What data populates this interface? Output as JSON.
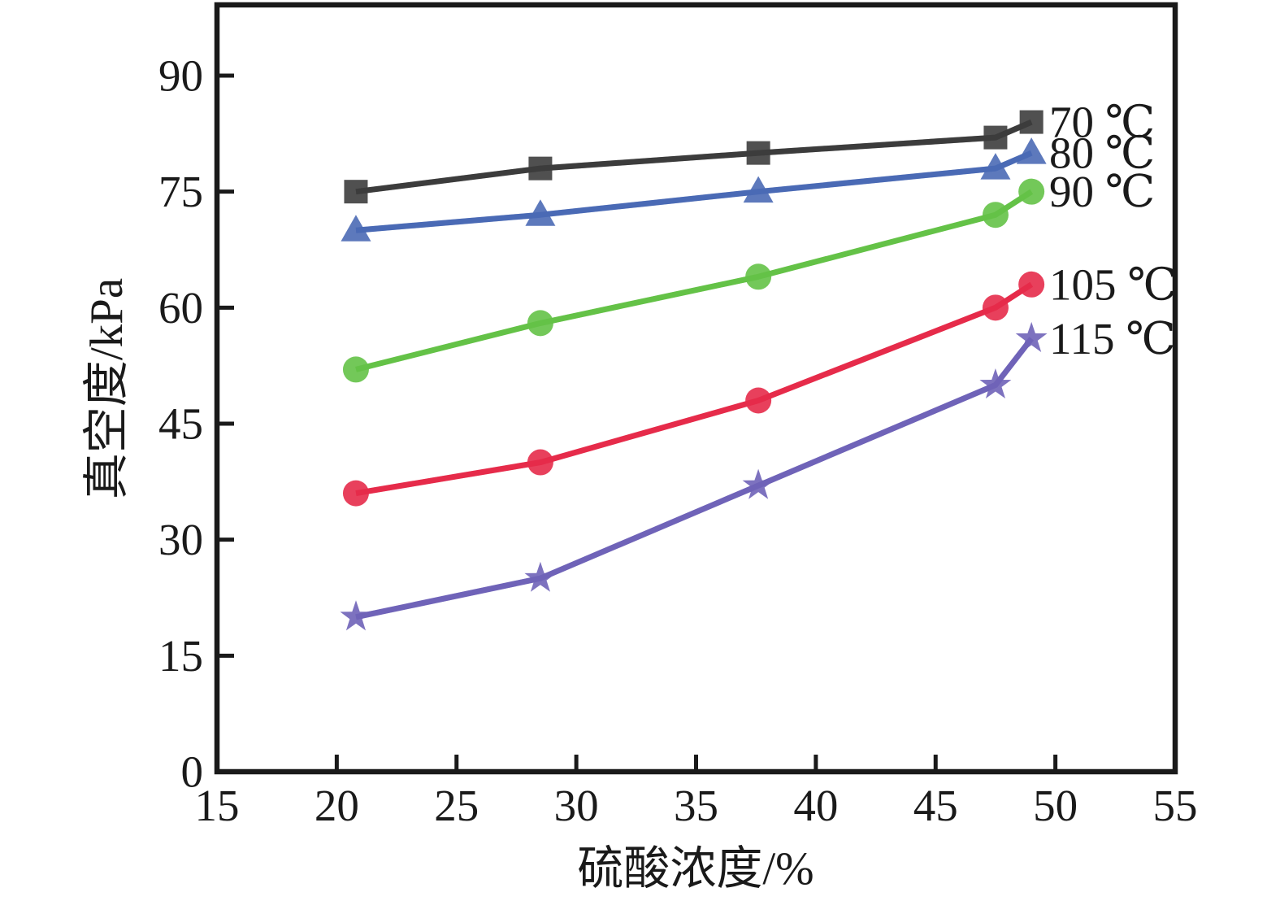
{
  "figure": {
    "background": "#ffffff",
    "axis_color": "#1a1a1a",
    "tick_label_color": "#1a1a1a"
  },
  "chart_data": {
    "type": "line",
    "title": "",
    "xlabel": "硫酸浓度/%",
    "ylabel": "真空度/kPa",
    "xlim": [
      15,
      55
    ],
    "ylim": [
      0,
      100
    ],
    "x_ticks": [
      15,
      20,
      25,
      30,
      35,
      40,
      45,
      50,
      55
    ],
    "y_ticks": [
      0,
      15,
      30,
      45,
      60,
      75,
      90
    ],
    "grid": false,
    "legend_position": "inline-right-of-last-point",
    "x": [
      20.8,
      28.5,
      37.6,
      47.5,
      49.0
    ],
    "series": [
      {
        "name": "70 ℃",
        "marker": "square",
        "color": "#3d3d3d",
        "values": [
          75,
          78,
          80,
          82,
          84
        ]
      },
      {
        "name": "80 ℃",
        "marker": "triangle",
        "color": "#4b6ab5",
        "values": [
          70,
          72,
          75,
          78,
          80
        ]
      },
      {
        "name": "90 ℃",
        "marker": "circle",
        "color": "#64c247",
        "values": [
          52,
          58,
          64,
          72,
          75
        ]
      },
      {
        "name": "105 ℃",
        "marker": "circle",
        "color": "#e62b4a",
        "values": [
          36,
          40,
          48,
          60,
          63
        ]
      },
      {
        "name": "115 ℃",
        "marker": "star",
        "color": "#6f63b8",
        "values": [
          20,
          25,
          37,
          50,
          56
        ]
      }
    ]
  }
}
